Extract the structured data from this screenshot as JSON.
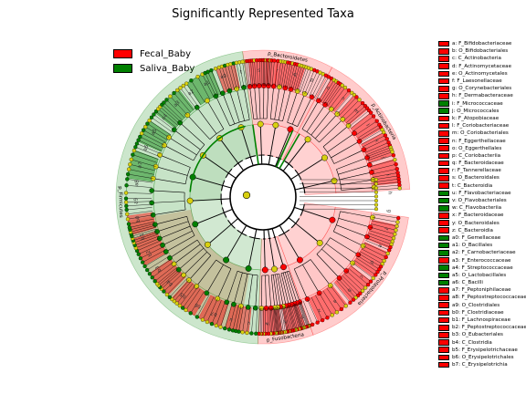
{
  "title": "Significantly Represented Taxa",
  "groups": [
    {
      "name": "Fecal_Baby",
      "color": "#ff0000"
    },
    {
      "name": "Saliva_Baby",
      "color": "#008000"
    }
  ],
  "phyla": [
    {
      "label": "p_Bacteroidetes",
      "group": "Fecal_Baby",
      "color": "#ff0000"
    },
    {
      "label": "p_Actinobacteria",
      "group": "Fecal_Baby",
      "color": "#ff0000"
    },
    {
      "label": "p_Proteobacteria",
      "group": "Fecal_Baby",
      "color": "#ff0000"
    },
    {
      "label": "p_Fusobacteria",
      "group": "Fecal_Baby",
      "color": "#ff0000"
    },
    {
      "label": "p_Firmicutes",
      "group": "Saliva_Baby",
      "color": "#008000"
    }
  ],
  "clade_letters": [
    "t",
    "s",
    "r",
    "q",
    "p",
    "o",
    "n",
    "m",
    "l",
    "k",
    "j",
    "i",
    "h",
    "g",
    "f",
    "e",
    "d",
    "c",
    "b",
    "a",
    "z",
    "y",
    "x",
    "w",
    "v",
    "u",
    "b7",
    "b6",
    "b5",
    "b4",
    "b3",
    "b2",
    "b1",
    "b0",
    "a9",
    "a8",
    "a7",
    "a6",
    "a5",
    "a4",
    "a3",
    "a2",
    "a1",
    "a0"
  ],
  "taxa": [
    {
      "key": "a",
      "name": "a: F_Bifidobacteriaceae",
      "group": "Fecal_Baby"
    },
    {
      "key": "b",
      "name": "b: O_Bifidobacteriales",
      "group": "Fecal_Baby"
    },
    {
      "key": "c",
      "name": "c: C_Actinobacteria",
      "group": "Fecal_Baby"
    },
    {
      "key": "d",
      "name": "d: F_Actinomycetaceae",
      "group": "Fecal_Baby"
    },
    {
      "key": "e",
      "name": "e: O_Actinomycetales",
      "group": "Fecal_Baby"
    },
    {
      "key": "f",
      "name": "f: F_Laesonellaceae",
      "group": "Fecal_Baby"
    },
    {
      "key": "g",
      "name": "g: O_Corynebacteriales",
      "group": "Fecal_Baby"
    },
    {
      "key": "h",
      "name": "h: F_Dermabacteraceae",
      "group": "Fecal_Baby"
    },
    {
      "key": "i",
      "name": "i: F_Micrococcaceae",
      "group": "Saliva_Baby"
    },
    {
      "key": "j",
      "name": "j: O_Micrococcales",
      "group": "Saliva_Baby"
    },
    {
      "key": "k",
      "name": "k: F_Atopobiaceae",
      "group": "Fecal_Baby"
    },
    {
      "key": "l",
      "name": "l: F_Coriobacteriaceae",
      "group": "Fecal_Baby"
    },
    {
      "key": "m",
      "name": "m: O_Coriobacteriales",
      "group": "Fecal_Baby"
    },
    {
      "key": "n",
      "name": "n: F_Eggerthellaceae",
      "group": "Fecal_Baby"
    },
    {
      "key": "o",
      "name": "o: O_Eggerthellales",
      "group": "Fecal_Baby"
    },
    {
      "key": "p",
      "name": "p: C_Coriobacteriia",
      "group": "Fecal_Baby"
    },
    {
      "key": "q",
      "name": "q: F_Bacteroidaceae",
      "group": "Fecal_Baby"
    },
    {
      "key": "r",
      "name": "r: F_Tannerellaceae",
      "group": "Fecal_Baby"
    },
    {
      "key": "s",
      "name": "s: O_Bacteroidales",
      "group": "Fecal_Baby"
    },
    {
      "key": "t",
      "name": "t: C_Bacteroidia",
      "group": "Fecal_Baby"
    },
    {
      "key": "u",
      "name": "u: F_Flavobacteriaceae",
      "group": "Saliva_Baby"
    },
    {
      "key": "v",
      "name": "v: O_Flavobacteriales",
      "group": "Saliva_Baby"
    },
    {
      "key": "w",
      "name": "w: C_Flavobacteriia",
      "group": "Saliva_Baby"
    },
    {
      "key": "x",
      "name": "x: F_Bacteroidaceae",
      "group": "Fecal_Baby"
    },
    {
      "key": "y",
      "name": "y: O_Bacteroidales",
      "group": "Fecal_Baby"
    },
    {
      "key": "z",
      "name": "z: C_Bacteroidia",
      "group": "Fecal_Baby"
    },
    {
      "key": "a0",
      "name": "a0: F_Gemellaceae",
      "group": "Saliva_Baby"
    },
    {
      "key": "a1",
      "name": "a1: O_Bacillales",
      "group": "Saliva_Baby"
    },
    {
      "key": "a2",
      "name": "a2: F_Carnobacteriaceae",
      "group": "Saliva_Baby"
    },
    {
      "key": "a3",
      "name": "a3: F_Enterococcaceae",
      "group": "Fecal_Baby"
    },
    {
      "key": "a4",
      "name": "a4: F_Streptococcaceae",
      "group": "Saliva_Baby"
    },
    {
      "key": "a5",
      "name": "a5: O_Lactobacillales",
      "group": "Saliva_Baby"
    },
    {
      "key": "a6",
      "name": "a6: C_Bacilli",
      "group": "Saliva_Baby"
    },
    {
      "key": "a7",
      "name": "a7: F_Peptoniphilaceae",
      "group": "Fecal_Baby"
    },
    {
      "key": "a8",
      "name": "a8: F_Peptostreptococcaceae",
      "group": "Fecal_Baby"
    },
    {
      "key": "a9",
      "name": "a9: O_Clostridiales",
      "group": "Fecal_Baby"
    },
    {
      "key": "b0",
      "name": "b0: F_Clostridiaceae",
      "group": "Fecal_Baby"
    },
    {
      "key": "b1",
      "name": "b1: F_Lachnospiraceae",
      "group": "Fecal_Baby"
    },
    {
      "key": "b2",
      "name": "b2: F_Peptostreptococcaceae",
      "group": "Fecal_Baby"
    },
    {
      "key": "b3",
      "name": "b3: O_Eubacteriales",
      "group": "Fecal_Baby"
    },
    {
      "key": "b4",
      "name": "b4: C_Clostridia",
      "group": "Fecal_Baby"
    },
    {
      "key": "b5",
      "name": "b5: F_Erysipelotrichaceae",
      "group": "Fecal_Baby"
    },
    {
      "key": "b6",
      "name": "b6: O_Erysipelotrichales",
      "group": "Fecal_Baby"
    },
    {
      "key": "b7",
      "name": "b7: C_Erysipelotrichia",
      "group": "Fecal_Baby"
    }
  ]
}
